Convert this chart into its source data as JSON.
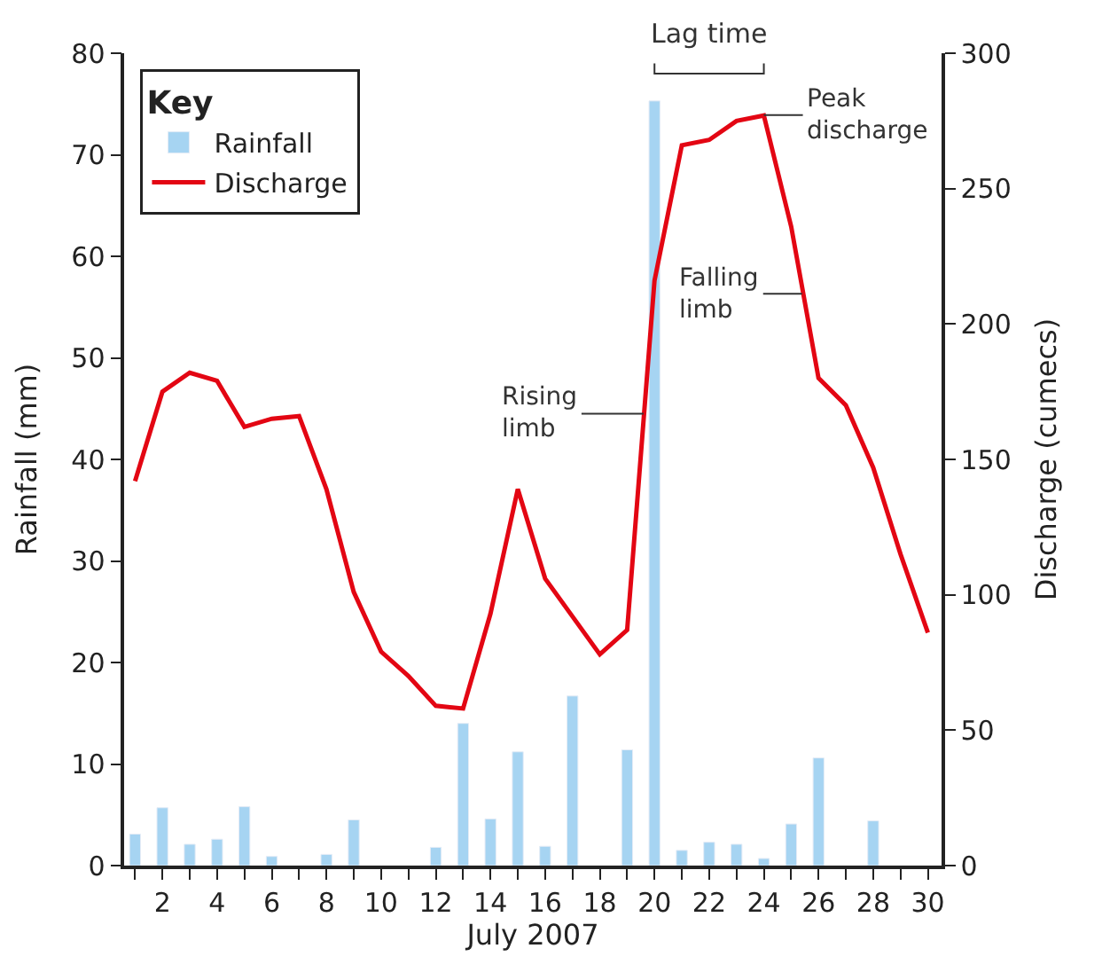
{
  "chart_data": {
    "type": "bar",
    "xlabel": "July 2007",
    "ylabel": "Rainfall (mm)",
    "y2label": "Discharge (cumecs)",
    "legend_title": "Key",
    "x": [
      1,
      2,
      3,
      4,
      5,
      6,
      7,
      8,
      9,
      10,
      11,
      12,
      13,
      14,
      15,
      16,
      17,
      18,
      19,
      20,
      21,
      22,
      23,
      24,
      25,
      26,
      27,
      28,
      29,
      30
    ],
    "series": [
      {
        "name": "Rainfall",
        "color": "#a6d4f2",
        "values": [
          3.1,
          5.7,
          2.1,
          2.6,
          5.8,
          0.9,
          null,
          1.1,
          4.5,
          null,
          null,
          1.8,
          14.0,
          4.6,
          11.2,
          1.9,
          16.7,
          null,
          11.4,
          75.3,
          1.5,
          2.3,
          2.1,
          0.7,
          4.1,
          10.6,
          null,
          4.4,
          null,
          null
        ]
      },
      {
        "name": "Discharge",
        "type": "line",
        "axis": "y2",
        "color": "#e30613",
        "values": [
          142,
          175,
          182,
          179,
          162,
          165,
          166,
          139,
          101,
          79,
          70,
          59,
          58,
          93,
          139,
          106,
          92,
          78,
          87,
          216,
          266,
          268,
          275,
          277,
          236,
          180,
          170,
          147,
          115,
          86
        ]
      }
    ],
    "xlim": [
      0.6,
      30.5
    ],
    "xticks": [
      {
        "value": 1,
        "label": null
      },
      2,
      {
        "value": 3,
        "label": null
      },
      4,
      {
        "value": 5,
        "label": null
      },
      6,
      {
        "value": 7,
        "label": null
      },
      8,
      {
        "value": 9,
        "label": null
      },
      10,
      {
        "value": 11,
        "label": null
      },
      12,
      {
        "value": 13,
        "label": null
      },
      14,
      {
        "value": 15,
        "label": null
      },
      16,
      {
        "value": 17,
        "label": null
      },
      18,
      {
        "value": 19,
        "label": null
      },
      20,
      {
        "value": 21,
        "label": null
      },
      22,
      {
        "value": 23,
        "label": null
      },
      24,
      {
        "value": 25,
        "label": null
      },
      26,
      {
        "value": 27,
        "label": null
      },
      28,
      {
        "value": 29,
        "label": null
      },
      30
    ],
    "ylim": [
      0,
      80
    ],
    "yticks": [
      0,
      10,
      20,
      30,
      40,
      50,
      60,
      70,
      80
    ],
    "y2lim": [
      0,
      300
    ],
    "y2ticks": [
      0,
      50,
      100,
      150,
      200,
      250,
      300
    ],
    "annotations": [
      "Lag time",
      {
        "text": "Peak discharge",
        "x": 24,
        "y": 73.9
      },
      {
        "text": "Falling limb",
        "x": 25.4,
        "y": 56.3
      },
      {
        "text": "Rising limb",
        "x": 19.6,
        "y": 44.5
      }
    ],
    "legend": "top left",
    "marker": "none",
    "line_style": "solid"
  }
}
